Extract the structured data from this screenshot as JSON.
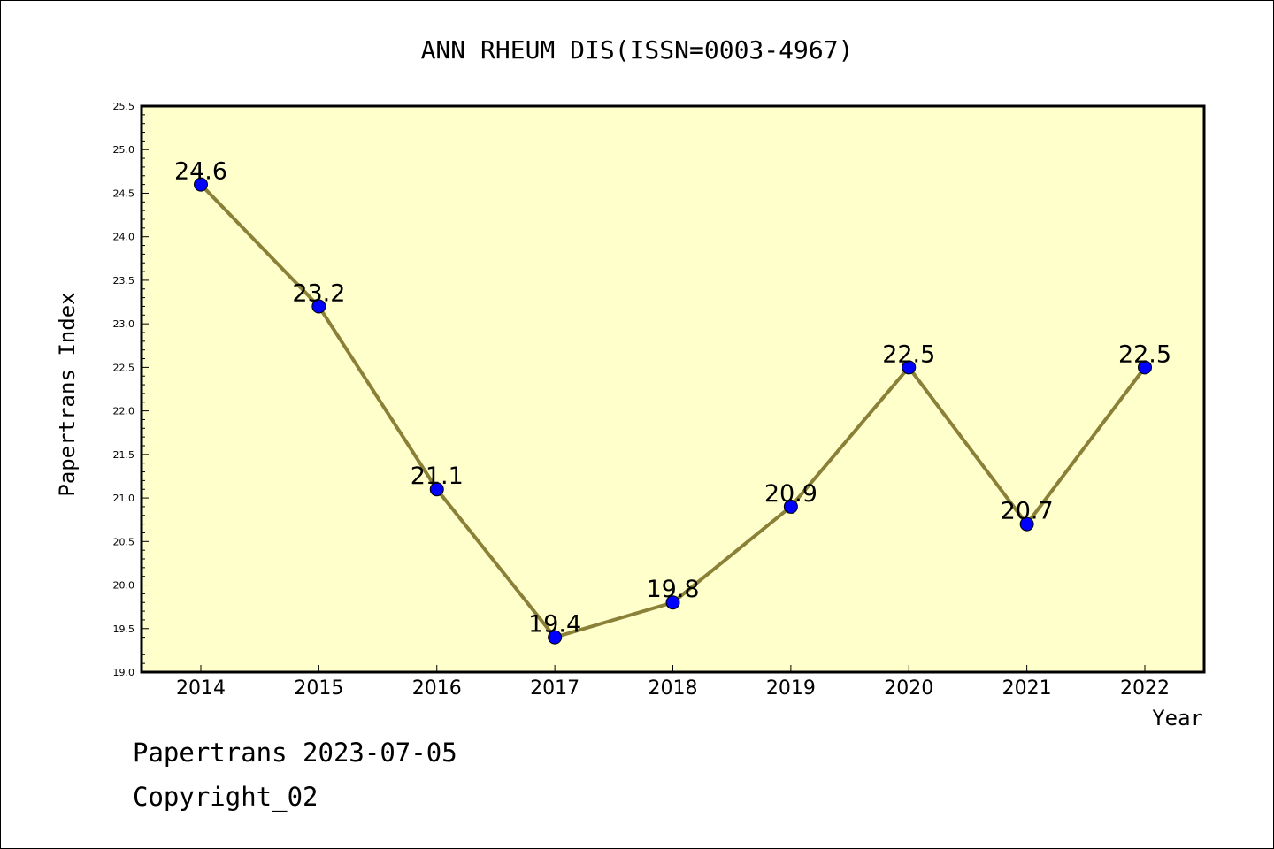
{
  "chart_data": {
    "type": "line",
    "title": "ANN RHEUM DIS(ISSN=0003-4967)",
    "xlabel": "Year",
    "ylabel": "Papertrans Index",
    "categories": [
      "2014",
      "2015",
      "2016",
      "2017",
      "2018",
      "2019",
      "2020",
      "2021",
      "2022"
    ],
    "values": [
      24.6,
      23.2,
      21.1,
      19.4,
      19.8,
      20.9,
      22.5,
      20.7,
      22.5
    ],
    "data_labels": [
      "24.6",
      "23.2",
      "21.1",
      "19.4",
      "19.8",
      "20.9",
      "22.5",
      "20.7",
      "22.5"
    ],
    "ylim": [
      19.0,
      25.5
    ],
    "yticks": [
      "19.0",
      "19.5",
      "20.0",
      "20.5",
      "21.0",
      "21.5",
      "22.0",
      "22.5",
      "23.0",
      "23.5",
      "24.0",
      "24.5",
      "25.0",
      "25.5"
    ],
    "grid": false,
    "colors": {
      "plot_background": "#ffffcc",
      "line": "#8b8038",
      "marker": "#0000ff"
    }
  },
  "footer": {
    "date_line": "Papertrans 2023-07-05",
    "copyright": "Copyright_02"
  }
}
